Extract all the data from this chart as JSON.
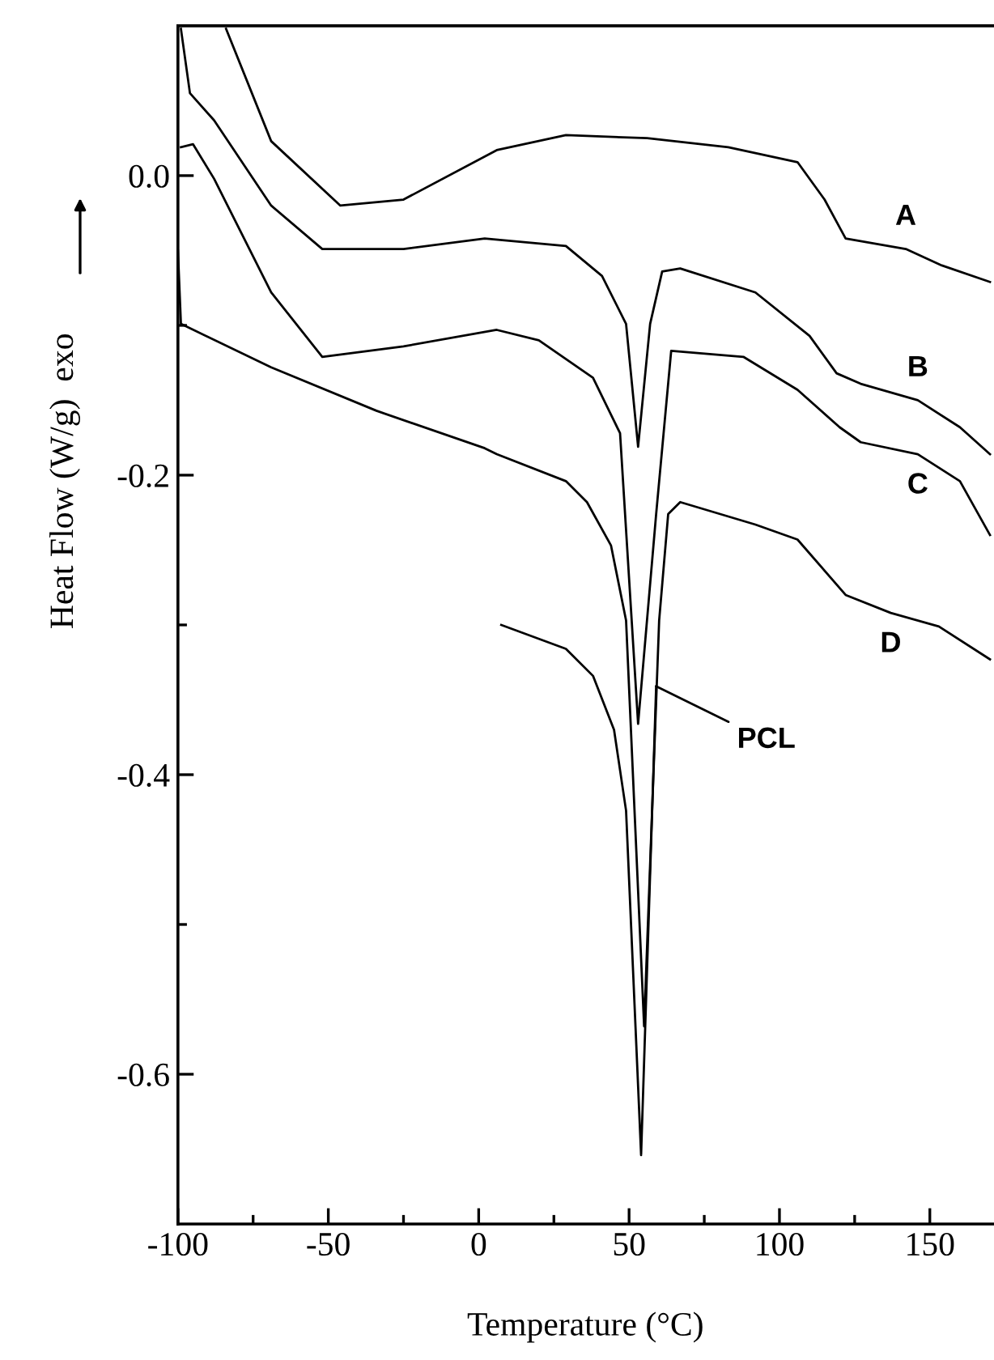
{
  "chart_data": {
    "type": "line",
    "xlabel": "Temperature (°C)",
    "ylabel": "Heat Flow (W/g)  exo",
    "xlim": [
      -100,
      171
    ],
    "ylim": [
      -0.7,
      0.1
    ],
    "xticks": [
      -100,
      {
        "value": -75,
        "label": null
      },
      -50,
      {
        "value": -25,
        "label": null
      },
      0,
      {
        "value": 25,
        "label": null
      },
      50,
      {
        "value": 75,
        "label": null
      },
      100,
      {
        "value": 125,
        "label": null
      },
      150
    ],
    "yticks": [
      {
        "value": 0,
        "label": "0.0"
      },
      {
        "value": -0.1,
        "label": null
      },
      -0.2,
      {
        "value": -0.3,
        "label": null
      },
      -0.4,
      {
        "value": -0.5,
        "label": null
      },
      -0.6
    ],
    "grid": false,
    "legend": false,
    "marker": "none",
    "line_style": "solid",
    "series": [
      {
        "name": "A",
        "color": "#000000",
        "x": [
          -84,
          -69,
          -46,
          -25,
          6,
          29,
          56,
          83,
          106,
          115,
          122,
          142,
          154,
          170
        ],
        "values": [
          0.098,
          0.023,
          -0.02,
          -0.016,
          0.017,
          0.027,
          0.025,
          0.019,
          0.009,
          -0.016,
          -0.042,
          -0.049,
          -0.06,
          -0.071
        ]
      },
      {
        "name": "B",
        "color": "#000000",
        "x": [
          -99,
          -96,
          -88,
          -69,
          -52,
          -25,
          2,
          29,
          41,
          49,
          53,
          57,
          61,
          67,
          92,
          110,
          119,
          127,
          146,
          160,
          170
        ],
        "values": [
          0.098,
          0.055,
          0.037,
          -0.02,
          -0.049,
          -0.049,
          -0.042,
          -0.047,
          -0.067,
          -0.099,
          -0.181,
          -0.099,
          -0.064,
          -0.062,
          -0.078,
          -0.107,
          -0.132,
          -0.139,
          -0.15,
          -0.168,
          -0.186
        ]
      },
      {
        "name": "C",
        "color": "#000000",
        "x": [
          -99,
          -95,
          -88,
          -69,
          -52,
          -25,
          6,
          20,
          38,
          47,
          53,
          59,
          64,
          88,
          106,
          120,
          127,
          146,
          160,
          170
        ],
        "values": [
          0.019,
          0.021,
          -0.002,
          -0.078,
          -0.121,
          -0.114,
          -0.103,
          -0.11,
          -0.135,
          -0.172,
          -0.366,
          -0.226,
          -0.117,
          -0.121,
          -0.143,
          -0.168,
          -0.178,
          -0.186,
          -0.204,
          -0.24
        ]
      },
      {
        "name": "D",
        "color": "#000000",
        "x": [
          -100,
          -99,
          -69,
          -34,
          2,
          6,
          29,
          36,
          44,
          49,
          55,
          60,
          63,
          67,
          92,
          106,
          122,
          137,
          153,
          170
        ],
        "values": [
          -0.05,
          -0.099,
          -0.128,
          -0.157,
          -0.182,
          -0.186,
          -0.204,
          -0.218,
          -0.247,
          -0.297,
          -0.568,
          -0.297,
          -0.226,
          -0.218,
          -0.233,
          -0.243,
          -0.28,
          -0.292,
          -0.301,
          -0.323
        ]
      },
      {
        "color": "#000000",
        "x": [
          7.5,
          29,
          38,
          45,
          49,
          54,
          59
        ],
        "values": [
          -0.3,
          -0.316,
          -0.334,
          -0.37,
          -0.424,
          -0.654,
          -0.341
        ]
      }
    ],
    "annotations": [
      {
        "text": "PCL",
        "x": 59,
        "y": -0.341
      }
    ]
  }
}
